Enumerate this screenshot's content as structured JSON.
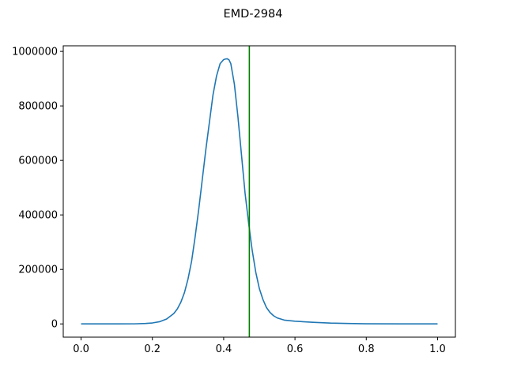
{
  "chart_data": {
    "type": "line",
    "title": "EMD-2984",
    "xlabel": "",
    "ylabel": "",
    "xlim": [
      -0.05,
      1.05
    ],
    "ylim": [
      -48600,
      1020600
    ],
    "xticks": [
      0.0,
      0.2,
      0.4,
      0.6,
      0.8,
      1.0
    ],
    "xtick_labels": [
      "0.0",
      "0.2",
      "0.4",
      "0.6",
      "0.8",
      "1.0"
    ],
    "yticks": [
      0,
      200000,
      400000,
      600000,
      800000,
      1000000
    ],
    "ytick_labels": [
      "0",
      "200000",
      "400000",
      "600000",
      "800000",
      "1000000"
    ],
    "grid": false,
    "series": [
      {
        "color": "#1f77b4",
        "x": [
          0.0,
          0.05,
          0.1,
          0.15,
          0.18,
          0.2,
          0.22,
          0.24,
          0.26,
          0.27,
          0.28,
          0.29,
          0.3,
          0.31,
          0.32,
          0.33,
          0.34,
          0.35,
          0.36,
          0.37,
          0.38,
          0.39,
          0.4,
          0.405,
          0.41,
          0.415,
          0.42,
          0.43,
          0.44,
          0.45,
          0.46,
          0.47,
          0.48,
          0.49,
          0.5,
          0.51,
          0.52,
          0.53,
          0.54,
          0.55,
          0.57,
          0.6,
          0.65,
          0.7,
          0.75,
          0.8,
          0.9,
          1.0
        ],
        "y": [
          0,
          0,
          0,
          300,
          1500,
          3500,
          8000,
          18000,
          38000,
          55000,
          80000,
          115000,
          165000,
          230000,
          320000,
          420000,
          530000,
          640000,
          740000,
          840000,
          910000,
          955000,
          970000,
          972000,
          973000,
          969000,
          955000,
          880000,
          760000,
          620000,
          480000,
          370000,
          270000,
          190000,
          130000,
          90000,
          60000,
          42000,
          30000,
          22000,
          14000,
          10000,
          6000,
          3000,
          1500,
          500,
          100,
          0
        ]
      }
    ],
    "vlines": [
      {
        "x": 0.472,
        "color": "#008000"
      }
    ]
  }
}
